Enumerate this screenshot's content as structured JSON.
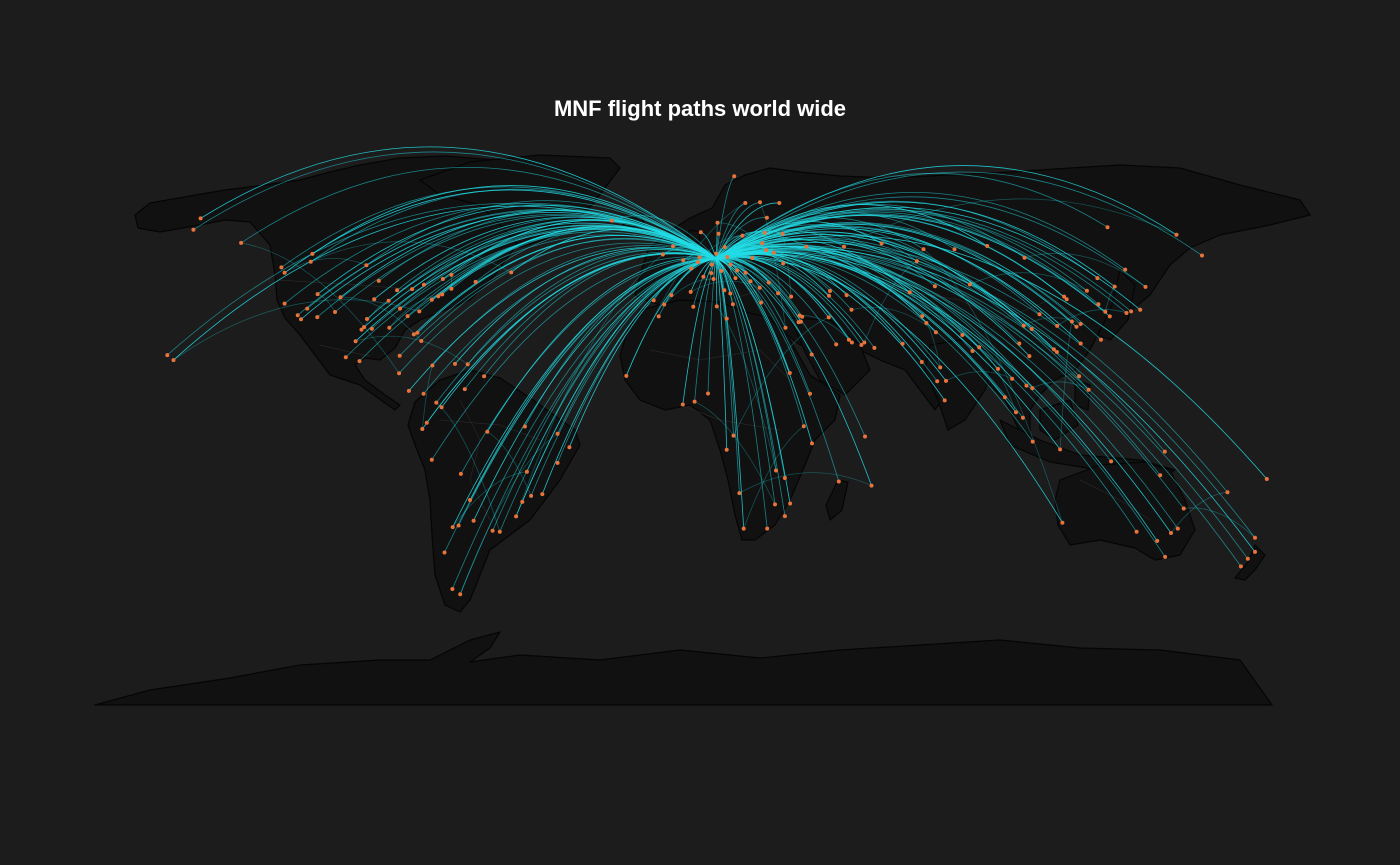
{
  "title": "MNF flight paths world wide",
  "colors": {
    "background": "#1c1c1c",
    "land": "#111111",
    "route": "#22dde6",
    "airport": "#e8743b"
  },
  "hub": [
    10,
    52
  ],
  "airports": [
    [
      -122,
      47.5
    ],
    [
      -122,
      37.7
    ],
    [
      -118,
      34
    ],
    [
      -117,
      32.7
    ],
    [
      -123,
      49.2
    ],
    [
      -114,
      51
    ],
    [
      -113.5,
      53.5
    ],
    [
      -97,
      49.9
    ],
    [
      -79.4,
      43.7
    ],
    [
      -73.6,
      45.5
    ],
    [
      -71,
      46.8
    ],
    [
      -63.6,
      44.6
    ],
    [
      -52.7,
      47.6
    ],
    [
      -87.6,
      41.9
    ],
    [
      -83,
      42.3
    ],
    [
      -75,
      40
    ],
    [
      -73.8,
      40.6
    ],
    [
      -71,
      42.4
    ],
    [
      -77,
      38.9
    ],
    [
      -84.4,
      33.7
    ],
    [
      -80.2,
      25.8
    ],
    [
      -81.4,
      28.4
    ],
    [
      -90,
      30
    ],
    [
      -95.3,
      29.7
    ],
    [
      -96.8,
      32.8
    ],
    [
      -97.7,
      30.2
    ],
    [
      -98.5,
      29.4
    ],
    [
      -104.9,
      39.7
    ],
    [
      -112,
      33.4
    ],
    [
      -115.1,
      36.1
    ],
    [
      -111.9,
      40.7
    ],
    [
      -93.2,
      44.9
    ],
    [
      -90.2,
      38.6
    ],
    [
      -94.6,
      39.1
    ],
    [
      -86.7,
      36.1
    ],
    [
      -80.8,
      35.2
    ],
    [
      -82.5,
      27.9
    ],
    [
      -106.6,
      35
    ],
    [
      -149.9,
      61.2
    ],
    [
      -147.7,
      64.8
    ],
    [
      -135.3,
      57
    ],
    [
      -157.9,
      21.3
    ],
    [
      -156,
      19.7
    ],
    [
      -99.1,
      19.4
    ],
    [
      -103.3,
      20.6
    ],
    [
      -100.3,
      25.7
    ],
    [
      -86.8,
      21.1
    ],
    [
      -87,
      15.5
    ],
    [
      -84,
      9.9
    ],
    [
      -79.5,
      9
    ],
    [
      -76.8,
      18
    ],
    [
      -69.9,
      18.5
    ],
    [
      -66,
      18.4
    ],
    [
      -61,
      14.6
    ],
    [
      -74,
      4.7
    ],
    [
      -75.6,
      6.2
    ],
    [
      -78.5,
      -0.2
    ],
    [
      -79.9,
      -2.2
    ],
    [
      -77,
      -12
    ],
    [
      -68.1,
      -16.5
    ],
    [
      -70.6,
      -33.4
    ],
    [
      -58.4,
      -34.6
    ],
    [
      -56.2,
      -34.9
    ],
    [
      -64.2,
      -31.4
    ],
    [
      -68.8,
      -32.9
    ],
    [
      -46.6,
      -23.5
    ],
    [
      -43.2,
      -22.9
    ],
    [
      -47.9,
      -15.8
    ],
    [
      -38.5,
      -13
    ],
    [
      -34.9,
      -8
    ],
    [
      -38.5,
      -3.7
    ],
    [
      -48.5,
      -1.4
    ],
    [
      -60,
      -3.1
    ],
    [
      -66.9,
      10.5
    ],
    [
      -49.3,
      -25.4
    ],
    [
      -51.2,
      -30
    ],
    [
      -70.7,
      -53.1
    ],
    [
      -68.3,
      -54.8
    ],
    [
      -65.3,
      -24.8
    ],
    [
      -73.1,
      -41.5
    ],
    [
      -0.1,
      51.5
    ],
    [
      -3.2,
      55.9
    ],
    [
      -6.3,
      53.3
    ],
    [
      2.35,
      48.86
    ],
    [
      4.9,
      52.4
    ],
    [
      4.4,
      50.9
    ],
    [
      8.7,
      50.1
    ],
    [
      11.6,
      48.1
    ],
    [
      13.4,
      52.5
    ],
    [
      10,
      53.6
    ],
    [
      12.6,
      55.7
    ],
    [
      10.7,
      59.9
    ],
    [
      18,
      59.3
    ],
    [
      24.9,
      60.2
    ],
    [
      21,
      52.2
    ],
    [
      14.4,
      50.1
    ],
    [
      16.4,
      48.2
    ],
    [
      19,
      47.5
    ],
    [
      8.5,
      47.4
    ],
    [
      6.1,
      46.2
    ],
    [
      9.2,
      45.5
    ],
    [
      12.5,
      41.9
    ],
    [
      14.3,
      40.9
    ],
    [
      15.1,
      37.5
    ],
    [
      -3.7,
      40.4
    ],
    [
      2.2,
      41.4
    ],
    [
      -9.1,
      38.7
    ],
    [
      -5.9,
      37.4
    ],
    [
      23.7,
      38
    ],
    [
      28.9,
      41
    ],
    [
      32.9,
      39.9
    ],
    [
      26.1,
      44.4
    ],
    [
      23.3,
      42.7
    ],
    [
      20.5,
      44.8
    ],
    [
      15.9,
      45.8
    ],
    [
      30.5,
      50.5
    ],
    [
      37.6,
      55.8
    ],
    [
      30.3,
      59.9
    ],
    [
      27.6,
      53.9
    ],
    [
      24.1,
      56.9
    ],
    [
      25.3,
      54.7
    ],
    [
      44.8,
      41.7
    ],
    [
      49.9,
      40.4
    ],
    [
      44.5,
      40.2
    ],
    [
      -21.9,
      64.1
    ],
    [
      18.9,
      69.7
    ],
    [
      5.3,
      60.4
    ],
    [
      10.4,
      63.4
    ],
    [
      25.5,
      65
    ],
    [
      29.3,
      69.7
    ],
    [
      23.4,
      69.9
    ],
    [
      15.5,
      78.2
    ],
    [
      -17.5,
      14.7
    ],
    [
      -7.6,
      33.6
    ],
    [
      3,
      36.7
    ],
    [
      10.2,
      36.8
    ],
    [
      13.2,
      32.9
    ],
    [
      31.2,
      30
    ],
    [
      32.5,
      15.6
    ],
    [
      38.7,
      9
    ],
    [
      36.8,
      -1.3
    ],
    [
      39.3,
      -6.8
    ],
    [
      28.3,
      -15.4
    ],
    [
      31,
      -17.8
    ],
    [
      32.6,
      -25.9
    ],
    [
      28,
      -26.2
    ],
    [
      31,
      -29.9
    ],
    [
      18.4,
      -33.9
    ],
    [
      25.6,
      -33.9
    ],
    [
      47.5,
      -18.9
    ],
    [
      57.5,
      -20.2
    ],
    [
      55.5,
      -4.6
    ],
    [
      3.4,
      6.5
    ],
    [
      -0.2,
      5.6
    ],
    [
      7.5,
      9.1
    ],
    [
      15.3,
      -4.3
    ],
    [
      13.2,
      -8.8
    ],
    [
      17.1,
      -22.6
    ],
    [
      35.2,
      31.8
    ],
    [
      35.9,
      31.9
    ],
    [
      35.5,
      33.9
    ],
    [
      36.3,
      33.5
    ],
    [
      44.4,
      33.3
    ],
    [
      46.7,
      24.7
    ],
    [
      39.2,
      21.5
    ],
    [
      55.3,
      25.3
    ],
    [
      54.4,
      24.5
    ],
    [
      51.5,
      25.3
    ],
    [
      50.6,
      26.2
    ],
    [
      58.4,
      23.6
    ],
    [
      51.4,
      35.7
    ],
    [
      69.2,
      41.3
    ],
    [
      71.4,
      51.2
    ],
    [
      76.9,
      43.2
    ],
    [
      67,
      24.9
    ],
    [
      74.3,
      31.5
    ],
    [
      73,
      33.7
    ],
    [
      77.2,
      28.6
    ],
    [
      72.9,
      19.1
    ],
    [
      77.6,
      13
    ],
    [
      80.3,
      13.1
    ],
    [
      88.4,
      22.6
    ],
    [
      78.5,
      17.4
    ],
    [
      79.9,
      6.9
    ],
    [
      85.3,
      27.7
    ],
    [
      90.4,
      23.8
    ],
    [
      96.2,
      16.9
    ],
    [
      100.5,
      13.8
    ],
    [
      98.3,
      7.9
    ],
    [
      105.8,
      21
    ],
    [
      106.7,
      10.8
    ],
    [
      104.9,
      11.6
    ],
    [
      101.7,
      3.1
    ],
    [
      103.8,
      1.35
    ],
    [
      106.8,
      -6.2
    ],
    [
      115.2,
      -8.7
    ],
    [
      121,
      14.6
    ],
    [
      123.9,
      10.3
    ],
    [
      114.2,
      22.3
    ],
    [
      113.3,
      23.1
    ],
    [
      121.5,
      31.2
    ],
    [
      120.2,
      30.3
    ],
    [
      118.8,
      32
    ],
    [
      116.4,
      39.9
    ],
    [
      117.2,
      39.1
    ],
    [
      123.4,
      41.8
    ],
    [
      126.6,
      45.8
    ],
    [
      104.1,
      30.7
    ],
    [
      106.5,
      29.6
    ],
    [
      108.9,
      34.3
    ],
    [
      114.3,
      30.6
    ],
    [
      102.7,
      25
    ],
    [
      87.6,
      43.8
    ],
    [
      121.5,
      25
    ],
    [
      126.9,
      37.5
    ],
    [
      129,
      35.1
    ],
    [
      139.7,
      35.7
    ],
    [
      135.5,
      34.7
    ],
    [
      136.9,
      35.2
    ],
    [
      130.4,
      33.6
    ],
    [
      141.3,
      43
    ],
    [
      127.7,
      26.2
    ],
    [
      131.9,
      43.1
    ],
    [
      135.1,
      48.5
    ],
    [
      158.6,
      53
    ],
    [
      150.8,
      59.6
    ],
    [
      129.7,
      62
    ],
    [
      104.3,
      52.3
    ],
    [
      92.9,
      56
    ],
    [
      82.9,
      55
    ],
    [
      73.4,
      55
    ],
    [
      60.6,
      56.8
    ],
    [
      49.1,
      55.8
    ],
    [
      151.2,
      -33.9
    ],
    [
      144.9,
      -37.8
    ],
    [
      153,
      -27.5
    ],
    [
      138.6,
      -34.9
    ],
    [
      115.9,
      -32
    ],
    [
      130.8,
      -12.5
    ],
    [
      145.8,
      -16.9
    ],
    [
      149.1,
      -35.3
    ],
    [
      147.3,
      -42.9
    ],
    [
      174.8,
      -36.8
    ],
    [
      174.8,
      -41.3
    ],
    [
      172.6,
      -43.5
    ],
    [
      170.5,
      -45.9
    ],
    [
      178.4,
      -18.1
    ],
    [
      166.4,
      -22.3
    ],
    [
      147.2,
      -9.4
    ]
  ]
}
